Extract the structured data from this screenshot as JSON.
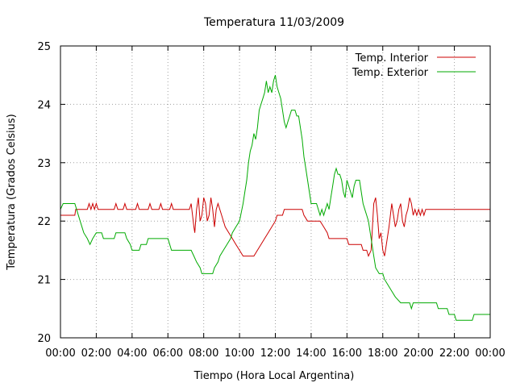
{
  "chart_data": {
    "type": "line",
    "title": "Temperatura 11/03/2009",
    "xlabel": "Tiempo (Hora Local Argentina)",
    "ylabel": "Temperatura (Grados Celsius)",
    "xlim": [
      0,
      24
    ],
    "ylim": [
      20,
      25
    ],
    "x_ticks": [
      "00:00",
      "02:00",
      "04:00",
      "06:00",
      "08:00",
      "10:00",
      "12:00",
      "14:00",
      "16:00",
      "18:00",
      "20:00",
      "22:00",
      "00:00"
    ],
    "y_ticks": [
      20,
      21,
      22,
      23,
      24,
      25
    ],
    "grid": true,
    "legend_position": "top-right",
    "series": [
      {
        "name": "Temp. Interior",
        "color": "#cc0000",
        "points": [
          [
            0,
            22.1
          ],
          [
            0.8,
            22.1
          ],
          [
            0.85,
            22.2
          ],
          [
            1.5,
            22.2
          ],
          [
            1.6,
            22.3
          ],
          [
            1.7,
            22.2
          ],
          [
            1.8,
            22.3
          ],
          [
            1.9,
            22.2
          ],
          [
            2.0,
            22.3
          ],
          [
            2.1,
            22.2
          ],
          [
            3.0,
            22.2
          ],
          [
            3.1,
            22.3
          ],
          [
            3.2,
            22.2
          ],
          [
            3.5,
            22.2
          ],
          [
            3.6,
            22.3
          ],
          [
            3.7,
            22.2
          ],
          [
            4.2,
            22.2
          ],
          [
            4.3,
            22.3
          ],
          [
            4.4,
            22.2
          ],
          [
            4.9,
            22.2
          ],
          [
            5.0,
            22.3
          ],
          [
            5.1,
            22.2
          ],
          [
            5.5,
            22.2
          ],
          [
            5.6,
            22.3
          ],
          [
            5.7,
            22.2
          ],
          [
            6.1,
            22.2
          ],
          [
            6.2,
            22.3
          ],
          [
            6.3,
            22.2
          ],
          [
            7.2,
            22.2
          ],
          [
            7.3,
            22.3
          ],
          [
            7.45,
            21.9
          ],
          [
            7.5,
            21.8
          ],
          [
            7.6,
            22.2
          ],
          [
            7.7,
            22.4
          ],
          [
            7.8,
            22.0
          ],
          [
            7.9,
            22.1
          ],
          [
            8.0,
            22.4
          ],
          [
            8.1,
            22.3
          ],
          [
            8.2,
            22.0
          ],
          [
            8.3,
            22.1
          ],
          [
            8.4,
            22.4
          ],
          [
            8.5,
            22.2
          ],
          [
            8.6,
            21.9
          ],
          [
            8.7,
            22.2
          ],
          [
            8.8,
            22.3
          ],
          [
            9.0,
            22.1
          ],
          [
            9.2,
            21.9
          ],
          [
            9.4,
            21.8
          ],
          [
            9.6,
            21.7
          ],
          [
            9.8,
            21.6
          ],
          [
            10.0,
            21.5
          ],
          [
            10.2,
            21.4
          ],
          [
            10.8,
            21.4
          ],
          [
            11.0,
            21.5
          ],
          [
            11.2,
            21.6
          ],
          [
            11.4,
            21.7
          ],
          [
            11.6,
            21.8
          ],
          [
            11.8,
            21.9
          ],
          [
            12.0,
            22.0
          ],
          [
            12.1,
            22.1
          ],
          [
            12.4,
            22.1
          ],
          [
            12.5,
            22.2
          ],
          [
            13.5,
            22.2
          ],
          [
            13.6,
            22.1
          ],
          [
            13.8,
            22.0
          ],
          [
            14.5,
            22.0
          ],
          [
            14.7,
            21.9
          ],
          [
            14.9,
            21.8
          ],
          [
            15.0,
            21.7
          ],
          [
            16.0,
            21.7
          ],
          [
            16.1,
            21.6
          ],
          [
            16.8,
            21.6
          ],
          [
            16.9,
            21.5
          ],
          [
            17.1,
            21.5
          ],
          [
            17.2,
            21.4
          ],
          [
            17.35,
            21.5
          ],
          [
            17.5,
            22.3
          ],
          [
            17.6,
            22.4
          ],
          [
            17.7,
            22.1
          ],
          [
            17.8,
            21.7
          ],
          [
            17.9,
            21.8
          ],
          [
            18.0,
            21.5
          ],
          [
            18.1,
            21.4
          ],
          [
            18.2,
            21.6
          ],
          [
            18.35,
            21.9
          ],
          [
            18.5,
            22.3
          ],
          [
            18.6,
            22.1
          ],
          [
            18.7,
            21.9
          ],
          [
            18.8,
            22.0
          ],
          [
            18.9,
            22.2
          ],
          [
            19.0,
            22.3
          ],
          [
            19.1,
            22.0
          ],
          [
            19.2,
            21.9
          ],
          [
            19.3,
            22.1
          ],
          [
            19.4,
            22.2
          ],
          [
            19.5,
            22.4
          ],
          [
            19.6,
            22.3
          ],
          [
            19.7,
            22.1
          ],
          [
            19.8,
            22.2
          ],
          [
            19.9,
            22.1
          ],
          [
            20.0,
            22.2
          ],
          [
            20.1,
            22.1
          ],
          [
            20.2,
            22.2
          ],
          [
            20.3,
            22.1
          ],
          [
            20.4,
            22.2
          ],
          [
            24,
            22.2
          ]
        ]
      },
      {
        "name": "Temp. Exterior",
        "color": "#00aa00",
        "points": [
          [
            0,
            22.2
          ],
          [
            0.15,
            22.3
          ],
          [
            0.8,
            22.3
          ],
          [
            0.9,
            22.2
          ],
          [
            1.1,
            22.0
          ],
          [
            1.3,
            21.8
          ],
          [
            1.5,
            21.7
          ],
          [
            1.65,
            21.6
          ],
          [
            1.8,
            21.7
          ],
          [
            2.0,
            21.8
          ],
          [
            2.3,
            21.8
          ],
          [
            2.4,
            21.7
          ],
          [
            3.0,
            21.7
          ],
          [
            3.1,
            21.8
          ],
          [
            3.6,
            21.8
          ],
          [
            3.7,
            21.7
          ],
          [
            3.9,
            21.6
          ],
          [
            4.0,
            21.5
          ],
          [
            4.4,
            21.5
          ],
          [
            4.5,
            21.6
          ],
          [
            4.8,
            21.6
          ],
          [
            4.9,
            21.7
          ],
          [
            6.0,
            21.7
          ],
          [
            6.1,
            21.6
          ],
          [
            6.2,
            21.5
          ],
          [
            7.3,
            21.5
          ],
          [
            7.45,
            21.4
          ],
          [
            7.6,
            21.3
          ],
          [
            7.8,
            21.2
          ],
          [
            7.9,
            21.1
          ],
          [
            8.5,
            21.1
          ],
          [
            8.6,
            21.2
          ],
          [
            8.8,
            21.3
          ],
          [
            8.9,
            21.4
          ],
          [
            9.1,
            21.5
          ],
          [
            9.3,
            21.6
          ],
          [
            9.5,
            21.7
          ],
          [
            9.6,
            21.8
          ],
          [
            9.8,
            21.9
          ],
          [
            10.0,
            22.0
          ],
          [
            10.2,
            22.3
          ],
          [
            10.3,
            22.5
          ],
          [
            10.4,
            22.7
          ],
          [
            10.5,
            23.0
          ],
          [
            10.6,
            23.2
          ],
          [
            10.7,
            23.3
          ],
          [
            10.8,
            23.5
          ],
          [
            10.9,
            23.4
          ],
          [
            11.0,
            23.6
          ],
          [
            11.1,
            23.9
          ],
          [
            11.2,
            24.0
          ],
          [
            11.3,
            24.1
          ],
          [
            11.4,
            24.2
          ],
          [
            11.45,
            24.3
          ],
          [
            11.5,
            24.4
          ],
          [
            11.6,
            24.2
          ],
          [
            11.7,
            24.3
          ],
          [
            11.8,
            24.2
          ],
          [
            11.9,
            24.4
          ],
          [
            12.0,
            24.5
          ],
          [
            12.1,
            24.3
          ],
          [
            12.2,
            24.2
          ],
          [
            12.3,
            24.1
          ],
          [
            12.4,
            23.9
          ],
          [
            12.5,
            23.7
          ],
          [
            12.6,
            23.6
          ],
          [
            12.7,
            23.7
          ],
          [
            12.8,
            23.8
          ],
          [
            12.9,
            23.9
          ],
          [
            13.1,
            23.9
          ],
          [
            13.2,
            23.8
          ],
          [
            13.3,
            23.8
          ],
          [
            13.4,
            23.6
          ],
          [
            13.5,
            23.4
          ],
          [
            13.6,
            23.1
          ],
          [
            13.7,
            22.9
          ],
          [
            13.8,
            22.7
          ],
          [
            13.9,
            22.5
          ],
          [
            14.0,
            22.3
          ],
          [
            14.3,
            22.3
          ],
          [
            14.4,
            22.2
          ],
          [
            14.5,
            22.1
          ],
          [
            14.6,
            22.2
          ],
          [
            14.7,
            22.1
          ],
          [
            14.8,
            22.2
          ],
          [
            14.9,
            22.3
          ],
          [
            15.0,
            22.2
          ],
          [
            15.1,
            22.4
          ],
          [
            15.2,
            22.6
          ],
          [
            15.3,
            22.8
          ],
          [
            15.4,
            22.9
          ],
          [
            15.5,
            22.8
          ],
          [
            15.6,
            22.8
          ],
          [
            15.7,
            22.7
          ],
          [
            15.8,
            22.5
          ],
          [
            15.9,
            22.4
          ],
          [
            16.0,
            22.7
          ],
          [
            16.1,
            22.6
          ],
          [
            16.2,
            22.5
          ],
          [
            16.3,
            22.4
          ],
          [
            16.4,
            22.6
          ],
          [
            16.5,
            22.7
          ],
          [
            16.7,
            22.7
          ],
          [
            16.8,
            22.5
          ],
          [
            16.9,
            22.3
          ],
          [
            17.0,
            22.2
          ],
          [
            17.1,
            22.1
          ],
          [
            17.2,
            22.0
          ],
          [
            17.3,
            21.8
          ],
          [
            17.4,
            21.6
          ],
          [
            17.5,
            21.4
          ],
          [
            17.6,
            21.2
          ],
          [
            17.8,
            21.1
          ],
          [
            18.0,
            21.1
          ],
          [
            18.1,
            21.0
          ],
          [
            18.3,
            20.9
          ],
          [
            18.5,
            20.8
          ],
          [
            18.7,
            20.7
          ],
          [
            19.0,
            20.6
          ],
          [
            19.5,
            20.6
          ],
          [
            19.6,
            20.5
          ],
          [
            19.7,
            20.6
          ],
          [
            21.0,
            20.6
          ],
          [
            21.1,
            20.5
          ],
          [
            21.6,
            20.5
          ],
          [
            21.7,
            20.4
          ],
          [
            22.0,
            20.4
          ],
          [
            22.1,
            20.3
          ],
          [
            23.0,
            20.3
          ],
          [
            23.1,
            20.4
          ],
          [
            24,
            20.4
          ]
        ]
      }
    ]
  }
}
